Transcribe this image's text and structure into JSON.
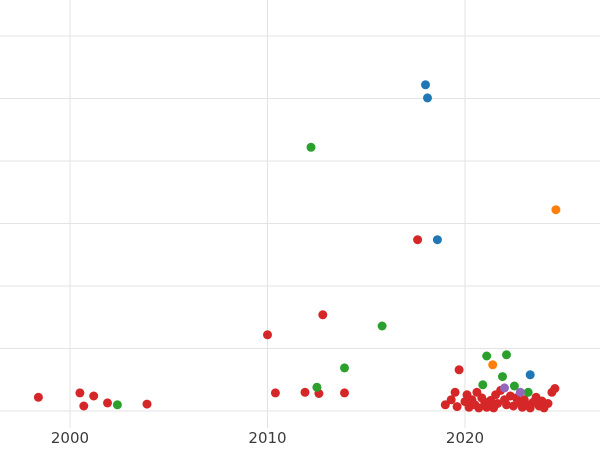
{
  "chart_data": {
    "type": "scatter",
    "title": "",
    "xlabel": "",
    "ylabel": "",
    "grid": true,
    "legend": "none",
    "background_color": "#ffffff",
    "gridline_color": "#e3e3e3",
    "tick_label_color": "#3b3b3b",
    "x_ticks": [
      2000,
      2010,
      2020
    ],
    "x_tick_labels": [
      "2000",
      "2010",
      "2020"
    ],
    "grid_y_values": [
      0,
      1,
      2,
      3,
      4,
      5,
      6
    ],
    "x_range": [
      1996.456,
      2026.835
    ],
    "y_range": [
      -0.624,
      6.576
    ],
    "y_axis_labels_visible": false,
    "point_radius": 4.5,
    "series": [
      {
        "name": "red",
        "color": "#d62728",
        "points": [
          [
            1998.4,
            0.22
          ],
          [
            2000.5,
            0.29
          ],
          [
            2000.7,
            0.08
          ],
          [
            2001.2,
            0.24
          ],
          [
            2001.9,
            0.13
          ],
          [
            2003.9,
            0.11
          ],
          [
            2010.0,
            1.22
          ],
          [
            2010.4,
            0.29
          ],
          [
            2011.9,
            0.3
          ],
          [
            2012.6,
            0.28
          ],
          [
            2012.8,
            1.54
          ],
          [
            2013.9,
            0.29
          ],
          [
            2017.6,
            2.74
          ],
          [
            2019.0,
            0.1
          ],
          [
            2019.3,
            0.18
          ],
          [
            2019.5,
            0.3
          ],
          [
            2019.6,
            0.07
          ],
          [
            2019.7,
            0.66
          ],
          [
            2020.0,
            0.15
          ],
          [
            2020.1,
            0.26
          ],
          [
            2020.2,
            0.06
          ],
          [
            2020.35,
            0.18
          ],
          [
            2020.5,
            0.1
          ],
          [
            2020.6,
            0.3
          ],
          [
            2020.7,
            0.05
          ],
          [
            2020.85,
            0.21
          ],
          [
            2021.0,
            0.14
          ],
          [
            2021.1,
            0.06
          ],
          [
            2021.3,
            0.17
          ],
          [
            2021.45,
            0.05
          ],
          [
            2021.55,
            0.26
          ],
          [
            2021.65,
            0.12
          ],
          [
            2021.8,
            0.33
          ],
          [
            2022.0,
            0.18
          ],
          [
            2022.1,
            0.1
          ],
          [
            2022.3,
            0.24
          ],
          [
            2022.45,
            0.08
          ],
          [
            2022.6,
            0.21
          ],
          [
            2022.75,
            0.14
          ],
          [
            2022.9,
            0.06
          ],
          [
            2023.0,
            0.18
          ],
          [
            2023.15,
            0.1
          ],
          [
            2023.3,
            0.05
          ],
          [
            2023.45,
            0.14
          ],
          [
            2023.6,
            0.22
          ],
          [
            2023.75,
            0.08
          ],
          [
            2023.9,
            0.16
          ],
          [
            2024.0,
            0.05
          ],
          [
            2024.2,
            0.12
          ],
          [
            2024.4,
            0.3
          ],
          [
            2024.55,
            0.36
          ]
        ]
      },
      {
        "name": "green",
        "color": "#2ca02c",
        "points": [
          [
            2002.4,
            0.1
          ],
          [
            2012.2,
            4.22
          ],
          [
            2012.5,
            0.38
          ],
          [
            2013.9,
            0.69
          ],
          [
            2015.8,
            1.36
          ],
          [
            2020.9,
            0.42
          ],
          [
            2021.1,
            0.88
          ],
          [
            2021.9,
            0.55
          ],
          [
            2022.1,
            0.9
          ],
          [
            2022.5,
            0.4
          ],
          [
            2023.2,
            0.3
          ]
        ]
      },
      {
        "name": "orange",
        "color": "#ff7f0e",
        "points": [
          [
            2021.4,
            0.74
          ],
          [
            2024.6,
            3.22
          ]
        ]
      },
      {
        "name": "purple",
        "color": "#9467bd",
        "points": [
          [
            2022.0,
            0.37
          ],
          [
            2022.8,
            0.3
          ]
        ]
      },
      {
        "name": "blue",
        "color": "#1f77b4",
        "points": [
          [
            2018.0,
            5.22
          ],
          [
            2018.1,
            5.01
          ],
          [
            2018.6,
            2.74
          ],
          [
            2023.3,
            0.58
          ]
        ]
      }
    ]
  }
}
